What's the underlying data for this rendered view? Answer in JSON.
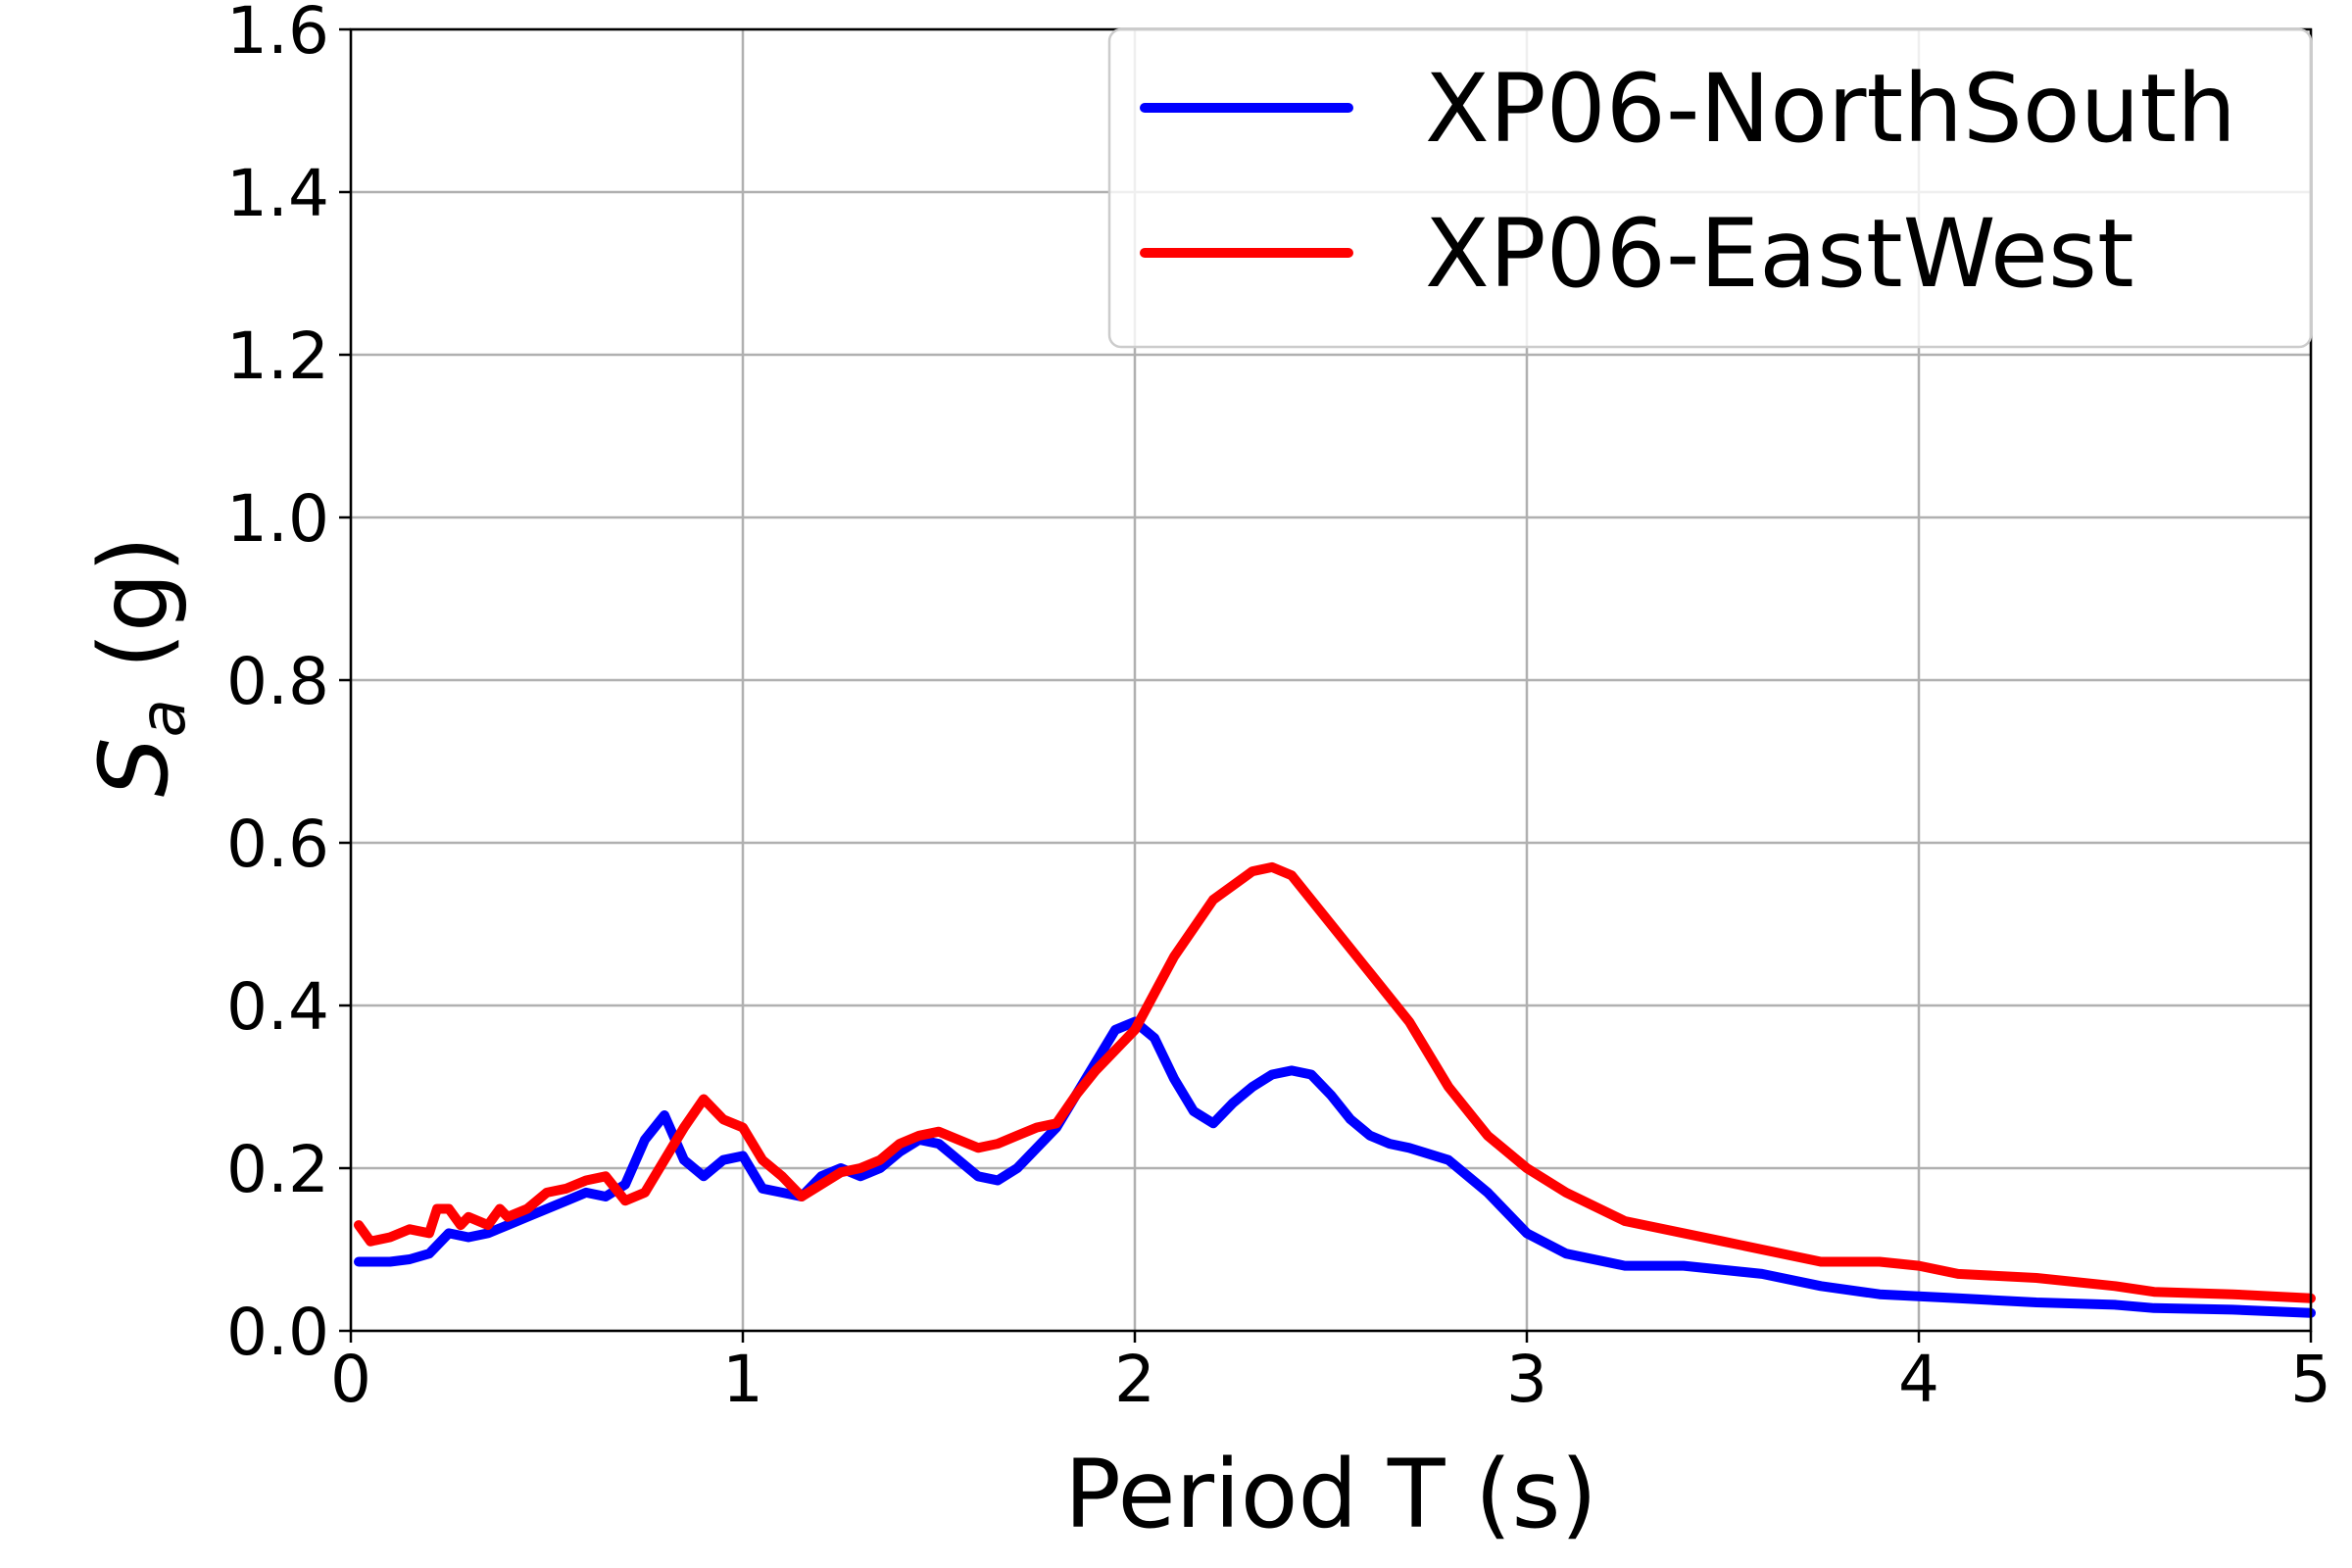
{
  "chart_data": {
    "type": "line",
    "xlabel": "Period T (s)",
    "ylabel_main": "S",
    "ylabel_sub": "a",
    "ylabel_unit": " (g)",
    "xlim": [
      0,
      5
    ],
    "ylim": [
      0,
      1.6
    ],
    "xticks": [
      0,
      1,
      2,
      3,
      4,
      5
    ],
    "xtick_labels": [
      "0",
      "1",
      "2",
      "3",
      "4",
      "5"
    ],
    "yticks": [
      0,
      0.2,
      0.4,
      0.6,
      0.8,
      1.0,
      1.2,
      1.4,
      1.6
    ],
    "ytick_labels": [
      "0.0",
      "0.2",
      "0.4",
      "0.6",
      "0.8",
      "1.0",
      "1.2",
      "1.4",
      "1.6"
    ],
    "grid": true,
    "legend_position": "top-right",
    "series": [
      {
        "name": "XP06-NorthSouth",
        "color": "#0000ff",
        "x": [
          0.02,
          0.1,
          0.15,
          0.2,
          0.25,
          0.3,
          0.35,
          0.4,
          0.45,
          0.5,
          0.55,
          0.6,
          0.65,
          0.7,
          0.75,
          0.8,
          0.85,
          0.9,
          0.95,
          1.0,
          1.05,
          1.1,
          1.15,
          1.2,
          1.25,
          1.3,
          1.35,
          1.4,
          1.45,
          1.5,
          1.55,
          1.6,
          1.65,
          1.7,
          1.8,
          1.9,
          1.95,
          2.0,
          2.05,
          2.1,
          2.15,
          2.2,
          2.25,
          2.3,
          2.35,
          2.4,
          2.45,
          2.5,
          2.55,
          2.6,
          2.65,
          2.7,
          2.8,
          2.9,
          3.0,
          3.1,
          3.25,
          3.4,
          3.6,
          3.75,
          3.9,
          4.1,
          4.3,
          4.5,
          4.6,
          4.8,
          5.0
        ],
        "y": [
          0.085,
          0.085,
          0.088,
          0.095,
          0.12,
          0.115,
          0.12,
          0.13,
          0.14,
          0.15,
          0.16,
          0.17,
          0.165,
          0.18,
          0.235,
          0.265,
          0.21,
          0.19,
          0.21,
          0.215,
          0.175,
          0.17,
          0.165,
          0.19,
          0.2,
          0.19,
          0.2,
          0.22,
          0.235,
          0.23,
          0.21,
          0.19,
          0.185,
          0.2,
          0.25,
          0.33,
          0.37,
          0.38,
          0.36,
          0.31,
          0.27,
          0.255,
          0.28,
          0.3,
          0.315,
          0.32,
          0.315,
          0.29,
          0.26,
          0.24,
          0.23,
          0.225,
          0.21,
          0.17,
          0.12,
          0.095,
          0.08,
          0.08,
          0.07,
          0.055,
          0.045,
          0.04,
          0.035,
          0.032,
          0.028,
          0.026,
          0.022
        ]
      },
      {
        "name": "XP06-EastWest",
        "color": "#ff0000",
        "x": [
          0.02,
          0.05,
          0.1,
          0.15,
          0.2,
          0.22,
          0.25,
          0.28,
          0.3,
          0.35,
          0.38,
          0.4,
          0.45,
          0.5,
          0.55,
          0.6,
          0.65,
          0.7,
          0.75,
          0.8,
          0.85,
          0.9,
          0.95,
          1.0,
          1.05,
          1.1,
          1.15,
          1.2,
          1.25,
          1.3,
          1.35,
          1.4,
          1.45,
          1.5,
          1.55,
          1.6,
          1.65,
          1.7,
          1.75,
          1.8,
          1.85,
          1.9,
          2.0,
          2.1,
          2.2,
          2.3,
          2.35,
          2.4,
          2.5,
          2.6,
          2.7,
          2.8,
          2.9,
          3.0,
          3.1,
          3.25,
          3.5,
          3.75,
          3.9,
          4.0,
          4.1,
          4.3,
          4.5,
          4.6,
          4.8,
          5.0
        ],
        "y": [
          0.13,
          0.11,
          0.115,
          0.125,
          0.12,
          0.15,
          0.15,
          0.13,
          0.14,
          0.13,
          0.15,
          0.14,
          0.15,
          0.17,
          0.175,
          0.185,
          0.19,
          0.16,
          0.17,
          0.21,
          0.25,
          0.285,
          0.26,
          0.25,
          0.21,
          0.19,
          0.165,
          0.18,
          0.195,
          0.2,
          0.21,
          0.23,
          0.24,
          0.245,
          0.235,
          0.225,
          0.23,
          0.24,
          0.25,
          0.255,
          0.29,
          0.32,
          0.37,
          0.46,
          0.53,
          0.565,
          0.57,
          0.56,
          0.5,
          0.44,
          0.38,
          0.3,
          0.24,
          0.2,
          0.17,
          0.135,
          0.11,
          0.085,
          0.085,
          0.08,
          0.07,
          0.065,
          0.055,
          0.048,
          0.045,
          0.04
        ]
      }
    ]
  }
}
